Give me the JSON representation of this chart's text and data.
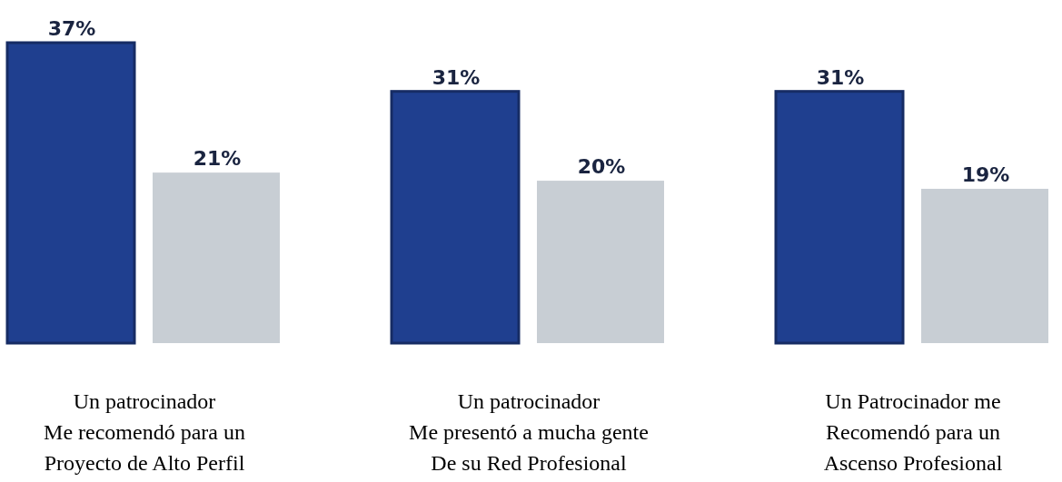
{
  "chart_data": {
    "type": "bar",
    "categories": [
      "Un patrocinador\nMe recomendó para un\nProyecto de Alto Perfil",
      "Un patrocinador\nMe presentó a mucha gente\nDe su Red Profesional",
      "Un Patrocinador me\nRecomendó para un\nAscenso Profesional"
    ],
    "series": [
      {
        "color": "#1f3f8f",
        "values": [
          37,
          31,
          31
        ],
        "value_labels": [
          "37%",
          "31%",
          "31%"
        ]
      },
      {
        "color": "#c8ced4",
        "values": [
          21,
          20,
          19
        ],
        "value_labels": [
          "21%",
          "20%",
          "19%"
        ]
      }
    ],
    "grid": false
  }
}
